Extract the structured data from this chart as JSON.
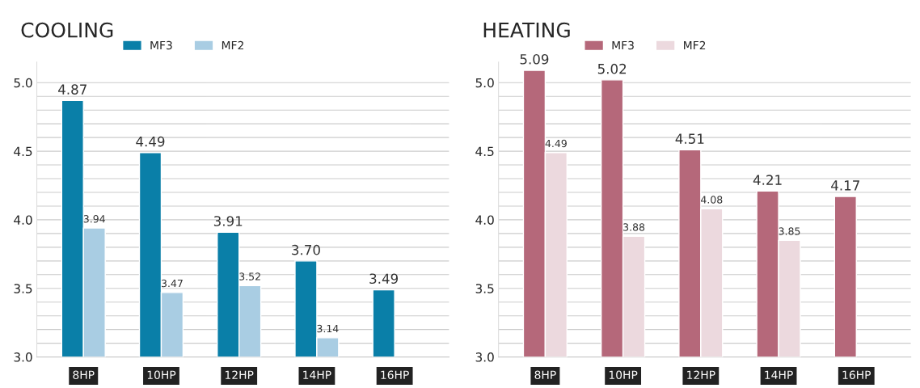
{
  "chart_data": [
    {
      "type": "bar",
      "title": "COOLING",
      "categories": [
        "8HP",
        "10HP",
        "12HP",
        "14HP",
        "16HP"
      ],
      "series": [
        {
          "name": "MF3",
          "color": "#0a7fa8",
          "values": [
            4.87,
            4.49,
            3.91,
            3.7,
            3.49
          ],
          "value_labels": [
            "4.87",
            "4.49",
            "3.91",
            "3.70",
            "3.49"
          ]
        },
        {
          "name": "MF2",
          "color": "#a9cde3",
          "values": [
            3.94,
            3.47,
            3.52,
            3.14,
            null
          ],
          "value_labels": [
            "3.94",
            "3.47",
            "3.52",
            "3.14",
            null
          ]
        }
      ],
      "ylim": [
        3.0,
        5.15
      ],
      "yticks": [
        {
          "value": 3.0,
          "label": "3.0"
        },
        {
          "value": 3.1,
          "label": null
        },
        {
          "value": 3.2,
          "label": null
        },
        {
          "value": 3.3,
          "label": null
        },
        {
          "value": 3.4,
          "label": null
        },
        {
          "value": 3.5,
          "label": "3.5"
        },
        {
          "value": 3.6,
          "label": null
        },
        {
          "value": 3.7,
          "label": null
        },
        {
          "value": 3.8,
          "label": null
        },
        {
          "value": 3.9,
          "label": null
        },
        {
          "value": 4.0,
          "label": "4.0"
        },
        {
          "value": 4.1,
          "label": null
        },
        {
          "value": 4.2,
          "label": null
        },
        {
          "value": 4.3,
          "label": null
        },
        {
          "value": 4.4,
          "label": null
        },
        {
          "value": 4.5,
          "label": "4.5"
        },
        {
          "value": 4.6,
          "label": null
        },
        {
          "value": 4.7,
          "label": null
        },
        {
          "value": 4.8,
          "label": null
        },
        {
          "value": 4.9,
          "label": null
        },
        {
          "value": 5.0,
          "label": "5.0"
        }
      ],
      "grid": "y",
      "legend": "top left"
    },
    {
      "type": "bar",
      "title": "HEATING",
      "categories": [
        "8HP",
        "10HP",
        "12HP",
        "14HP",
        "16HP"
      ],
      "series": [
        {
          "name": "MF3",
          "color": "#b5687a",
          "values": [
            5.09,
            5.02,
            4.51,
            4.21,
            4.17
          ],
          "value_labels": [
            "5.09",
            "5.02",
            "4.51",
            "4.21",
            "4.17"
          ]
        },
        {
          "name": "MF2",
          "color": "#ecd9de",
          "values": [
            4.49,
            3.88,
            4.08,
            3.85,
            null
          ],
          "value_labels": [
            "4.49",
            "3.88",
            "4.08",
            "3.85",
            null
          ]
        }
      ],
      "ylim": [
        3.0,
        5.15
      ],
      "yticks": [
        {
          "value": 3.0,
          "label": "3.0"
        },
        {
          "value": 3.1,
          "label": null
        },
        {
          "value": 3.2,
          "label": null
        },
        {
          "value": 3.3,
          "label": null
        },
        {
          "value": 3.4,
          "label": null
        },
        {
          "value": 3.5,
          "label": "3.5"
        },
        {
          "value": 3.6,
          "label": null
        },
        {
          "value": 3.7,
          "label": null
        },
        {
          "value": 3.8,
          "label": null
        },
        {
          "value": 3.9,
          "label": null
        },
        {
          "value": 4.0,
          "label": "4.0"
        },
        {
          "value": 4.1,
          "label": null
        },
        {
          "value": 4.2,
          "label": null
        },
        {
          "value": 4.3,
          "label": null
        },
        {
          "value": 4.4,
          "label": null
        },
        {
          "value": 4.5,
          "label": "4.5"
        },
        {
          "value": 4.6,
          "label": null
        },
        {
          "value": 4.7,
          "label": null
        },
        {
          "value": 4.8,
          "label": null
        },
        {
          "value": 4.9,
          "label": null
        },
        {
          "value": 5.0,
          "label": "5.0"
        }
      ],
      "grid": "y",
      "legend": "top left"
    }
  ]
}
